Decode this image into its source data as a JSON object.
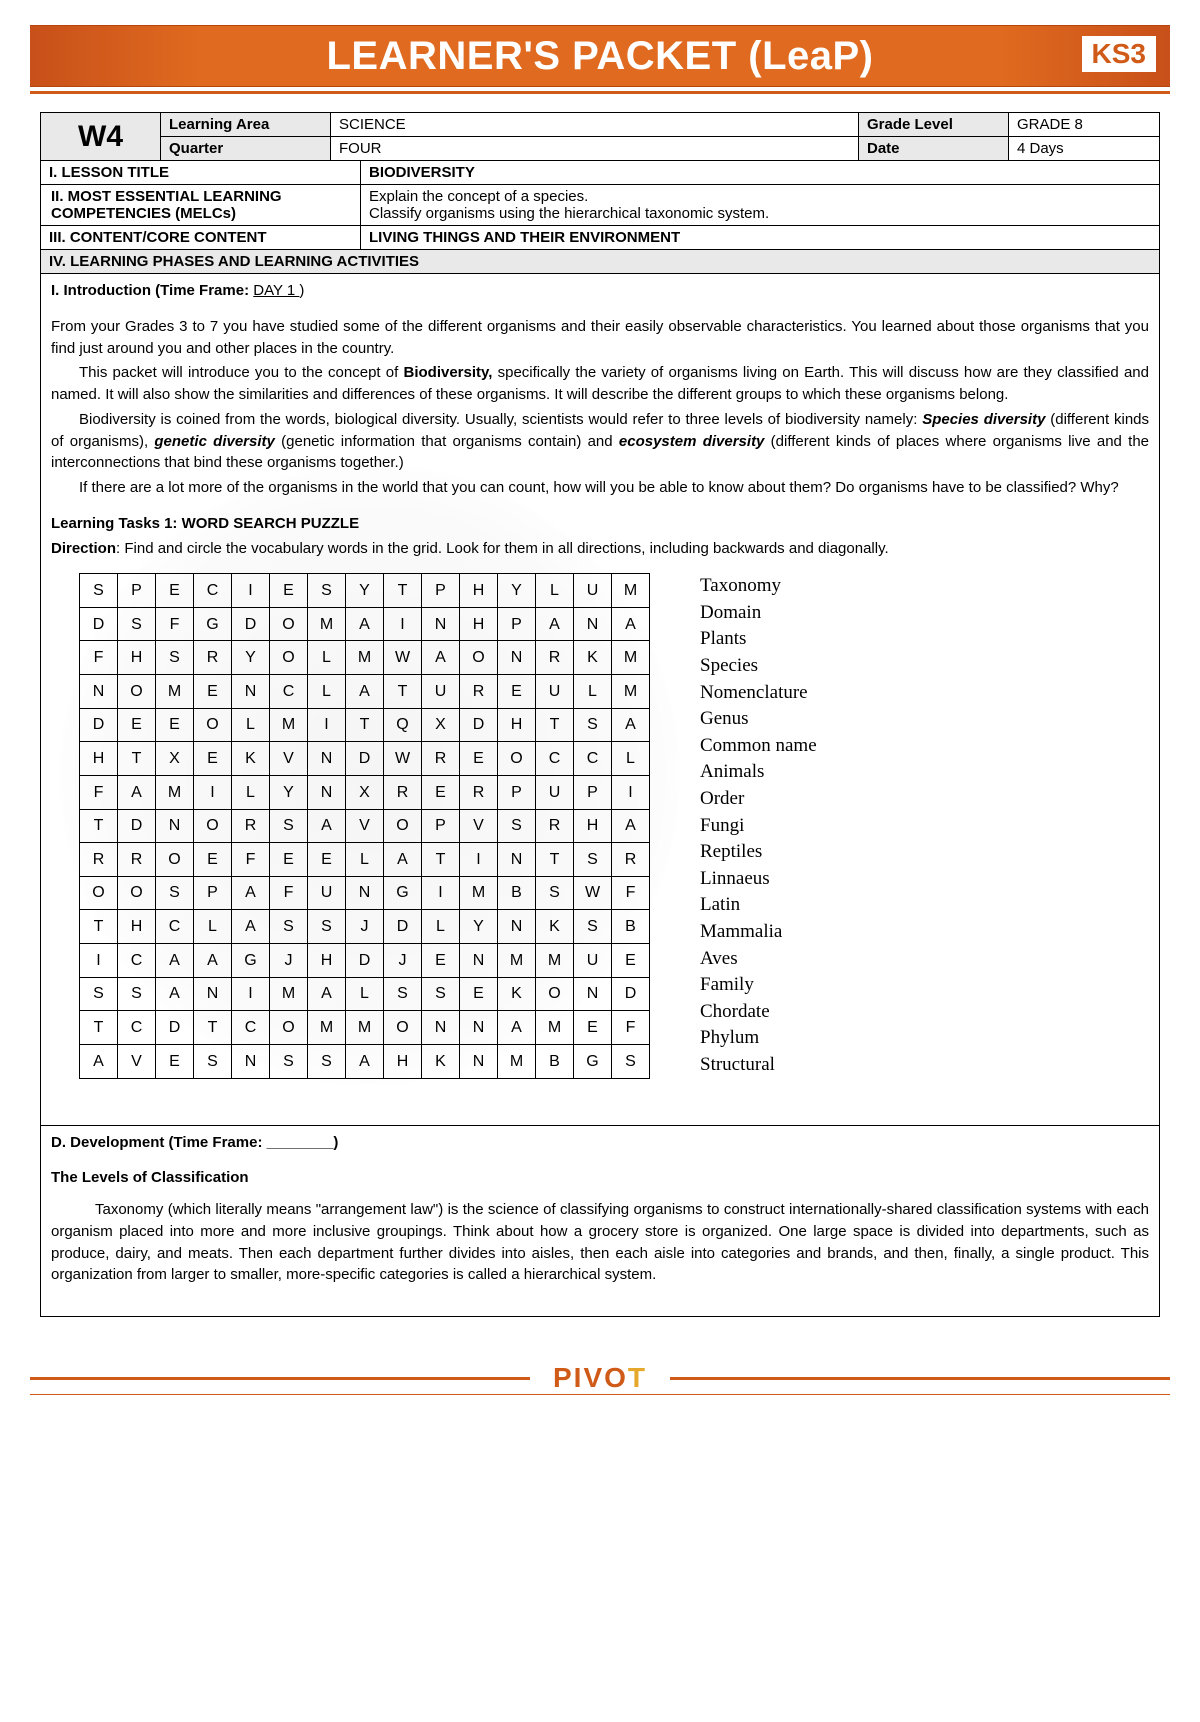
{
  "header": {
    "title": "LEARNER'S PACKET (LeaP)",
    "badge": "KS3"
  },
  "info": {
    "week": "W4",
    "learning_area_label": "Learning Area",
    "learning_area": "SCIENCE",
    "grade_level_label": "Grade Level",
    "grade_level": "GRADE 8",
    "quarter_label": "Quarter",
    "quarter": "FOUR",
    "date_label": "Date",
    "date": "4 Days"
  },
  "sections": {
    "i_label": "I. LESSON TITLE",
    "i_value": "BIODIVERSITY",
    "ii_label": "II. MOST ESSENTIAL LEARNING COMPETENCIES (MELCs)",
    "ii_value_a": "Explain the concept of a species.",
    "ii_value_b": "Classify organisms using the hierarchical taxonomic system.",
    "iii_label": "III. CONTENT/CORE CONTENT",
    "iii_value": "LIVING THINGS AND THEIR ENVIRONMENT",
    "iv_label": "IV. LEARNING PHASES AND LEARNING ACTIVITIES"
  },
  "intro": {
    "line": "I. Introduction (Time Frame: ",
    "tf": "  DAY 1          ",
    "close": ")",
    "p1": "From your Grades 3 to 7 you have studied some of the different organisms and their easily observable characteristics. You learned about those organisms that you find just around you and other places in the country.",
    "p2a": "This packet will introduce you to the concept of ",
    "p2b": "Biodiversity,",
    "p2c": " specifically the variety of organisms living on Earth. This will discuss how are they classified and named. It will also show the similarities and differences of these organisms. It will describe the different groups to which these organisms belong.",
    "p3a": "Biodiversity is coined from the words, biological diversity. Usually, scientists would refer to three levels of biodiversity namely: ",
    "p3b": "Species diversity",
    "p3c": " (different kinds of organisms), ",
    "p3d": "genetic diversity",
    "p3e": " (genetic information that organisms contain) and ",
    "p3f": "ecosystem diversity",
    "p3g": " (different kinds of places where organisms live and the interconnections that bind these organisms together.)",
    "p4": "If there are a lot more of the organisms in the world that you can count, how will you be able to know about them? Do organisms have to be classified? Why?"
  },
  "task1": {
    "title": "Learning Tasks 1: WORD SEARCH PUZZLE",
    "dir_label": "Direction",
    "dir_text": ": Find and circle the vocabulary words in the grid. Look for them in all directions, including backwards and diagonally."
  },
  "word_search": {
    "grid": [
      [
        "S",
        "P",
        "E",
        "C",
        "I",
        "E",
        "S",
        "Y",
        "T",
        "P",
        "H",
        "Y",
        "L",
        "U",
        "M"
      ],
      [
        "D",
        "S",
        "F",
        "G",
        "D",
        "O",
        "M",
        "A",
        "I",
        "N",
        "H",
        "P",
        "A",
        "N",
        "A"
      ],
      [
        "F",
        "H",
        "S",
        "R",
        "Y",
        "O",
        "L",
        "M",
        "W",
        "A",
        "O",
        "N",
        "R",
        "K",
        "M"
      ],
      [
        "N",
        "O",
        "M",
        "E",
        "N",
        "C",
        "L",
        "A",
        "T",
        "U",
        "R",
        "E",
        "U",
        "L",
        "M"
      ],
      [
        "D",
        "E",
        "E",
        "O",
        "L",
        "M",
        "I",
        "T",
        "Q",
        "X",
        "D",
        "H",
        "T",
        "S",
        "A"
      ],
      [
        "H",
        "T",
        "X",
        "E",
        "K",
        "V",
        "N",
        "D",
        "W",
        "R",
        "E",
        "O",
        "C",
        "C",
        "L"
      ],
      [
        "F",
        "A",
        "M",
        "I",
        "L",
        "Y",
        "N",
        "X",
        "R",
        "E",
        "R",
        "P",
        "U",
        "P",
        "I"
      ],
      [
        "T",
        "D",
        "N",
        "O",
        "R",
        "S",
        "A",
        "V",
        "O",
        "P",
        "V",
        "S",
        "R",
        "H",
        "A"
      ],
      [
        "R",
        "R",
        "O",
        "E",
        "F",
        "E",
        "E",
        "L",
        "A",
        "T",
        "I",
        "N",
        "T",
        "S",
        "R"
      ],
      [
        "O",
        "O",
        "S",
        "P",
        "A",
        "F",
        "U",
        "N",
        "G",
        "I",
        "M",
        "B",
        "S",
        "W",
        "F"
      ],
      [
        "T",
        "H",
        "C",
        "L",
        "A",
        "S",
        "S",
        "J",
        "D",
        "L",
        "Y",
        "N",
        "K",
        "S",
        "B"
      ],
      [
        "I",
        "C",
        "A",
        "A",
        "G",
        "J",
        "H",
        "D",
        "J",
        "E",
        "N",
        "M",
        "M",
        "U",
        "E"
      ],
      [
        "S",
        "S",
        "A",
        "N",
        "I",
        "M",
        "A",
        "L",
        "S",
        "S",
        "E",
        "K",
        "O",
        "N",
        "D"
      ],
      [
        "T",
        "C",
        "D",
        "T",
        "C",
        "O",
        "M",
        "M",
        "O",
        "N",
        "N",
        "A",
        "M",
        "E",
        "F"
      ],
      [
        "A",
        "V",
        "E",
        "S",
        "N",
        "S",
        "S",
        "A",
        "H",
        "K",
        "N",
        "M",
        "B",
        "G",
        "S"
      ]
    ],
    "words": [
      "Taxonomy",
      "Domain",
      "Plants",
      "Species",
      "Nomenclature",
      "Genus",
      "Common name",
      "Animals",
      "Order",
      "Fungi",
      "Reptiles",
      "Linnaeus",
      "Latin",
      "Mammalia",
      "Aves",
      "Family",
      "Chordate",
      "Phylum",
      "Structural"
    ]
  },
  "dev": {
    "line": "D. Development (Time Frame: ________)",
    "h": "The Levels of Classification",
    "p": "Taxonomy (which literally means \"arrangement law\") is the science of classifying organisms to construct internationally-shared classification systems with each organism placed into more and more inclusive groupings. Think about how a grocery store is organized. One large space is divided into departments, such as produce, dairy, and meats. Then each department further divides into aisles, then each aisle into categories and brands, and then, finally, a single product. This organization from larger to smaller, more-specific categories is called a hierarchical system."
  },
  "footer": {
    "brand_a": "PIVO",
    "brand_b": "T"
  }
}
